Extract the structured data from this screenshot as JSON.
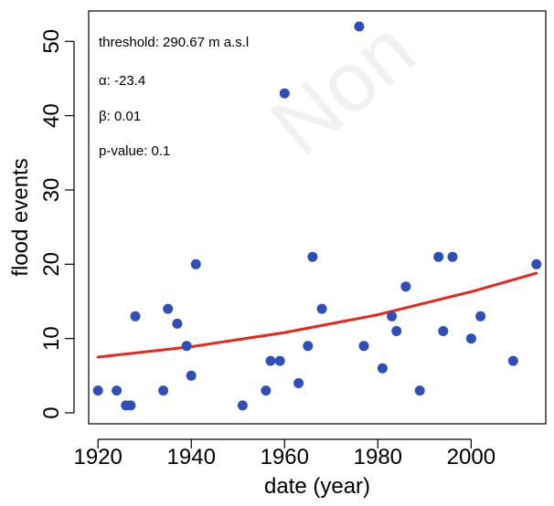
{
  "chart_data": {
    "type": "scatter",
    "xlabel": "date (year)",
    "ylabel": "flood events",
    "xlim": [
      1918,
      2016
    ],
    "ylim": [
      0,
      52
    ],
    "x_ticks": [
      1920,
      1940,
      1960,
      1980,
      2000
    ],
    "y_ticks": [
      0,
      10,
      20,
      30,
      40,
      50
    ],
    "grid": false,
    "point_color": "#2f4fb8",
    "trend_color": "#e8281e",
    "points": [
      {
        "x": 1920,
        "y": 3
      },
      {
        "x": 1924,
        "y": 3
      },
      {
        "x": 1926,
        "y": 1
      },
      {
        "x": 1927,
        "y": 1
      },
      {
        "x": 1928,
        "y": 13
      },
      {
        "x": 1934,
        "y": 3
      },
      {
        "x": 1935,
        "y": 14
      },
      {
        "x": 1937,
        "y": 12
      },
      {
        "x": 1939,
        "y": 9
      },
      {
        "x": 1940,
        "y": 5
      },
      {
        "x": 1941,
        "y": 20
      },
      {
        "x": 1951,
        "y": 1
      },
      {
        "x": 1956,
        "y": 3
      },
      {
        "x": 1957,
        "y": 7
      },
      {
        "x": 1959,
        "y": 7
      },
      {
        "x": 1960,
        "y": 43
      },
      {
        "x": 1963,
        "y": 4
      },
      {
        "x": 1965,
        "y": 9
      },
      {
        "x": 1966,
        "y": 21
      },
      {
        "x": 1968,
        "y": 14
      },
      {
        "x": 1976,
        "y": 52
      },
      {
        "x": 1977,
        "y": 9
      },
      {
        "x": 1981,
        "y": 6
      },
      {
        "x": 1983,
        "y": 13
      },
      {
        "x": 1984,
        "y": 11
      },
      {
        "x": 1986,
        "y": 17
      },
      {
        "x": 1989,
        "y": 3
      },
      {
        "x": 1993,
        "y": 21
      },
      {
        "x": 1994,
        "y": 11
      },
      {
        "x": 1996,
        "y": 21
      },
      {
        "x": 2000,
        "y": 10
      },
      {
        "x": 2002,
        "y": 13
      },
      {
        "x": 2009,
        "y": 7
      },
      {
        "x": 2014,
        "y": 20
      }
    ],
    "trend_line": {
      "x": [
        1920,
        1940,
        1960,
        1980,
        2000,
        2014
      ],
      "y": [
        7.5,
        8.9,
        10.8,
        13.2,
        16.3,
        18.8
      ]
    },
    "annotations": [
      "threshold: 290.67 m a.s.l",
      "α: -23.4",
      "β: 0.01",
      "p-value: 0.1"
    ],
    "watermark": "Non"
  }
}
